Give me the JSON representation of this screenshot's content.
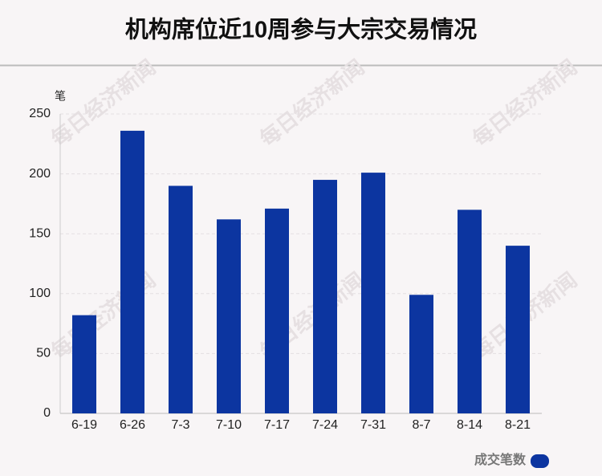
{
  "chart_data": {
    "type": "bar",
    "title": "机构席位近10周参与大宗交易情况",
    "y_label": "笔",
    "watermark": "每日经济新闻",
    "categories": [
      "6-19",
      "6-26",
      "7-3",
      "7-10",
      "7-17",
      "7-24",
      "7-31",
      "8-7",
      "8-14",
      "8-21"
    ],
    "series": [
      {
        "name": "成交笔数",
        "color": "#0c35a0",
        "values": [
          82,
          236,
          190,
          162,
          171,
          195,
          201,
          99,
          170,
          140
        ]
      }
    ],
    "ylim": [
      0,
      250
    ],
    "yticks": [
      0,
      50,
      100,
      150,
      200,
      250
    ],
    "grid": true,
    "legend": "bottom-right"
  }
}
